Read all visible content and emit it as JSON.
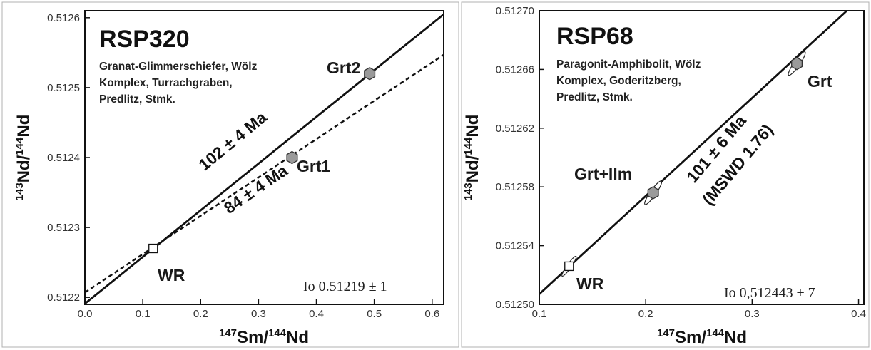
{
  "chart_data": [
    {
      "type": "scatter",
      "title": "RSP320",
      "subtitle_lines": [
        "Granat-Glimmerschiefer, Wölz",
        "Komplex, Turrachgraben,",
        "Predlitz, Stmk."
      ],
      "xlabel_sup1": "147",
      "xlabel_main1": "Sm/",
      "xlabel_sup2": "144",
      "xlabel_main2": "Nd",
      "ylabel_sup1": "143",
      "ylabel_main1": "Nd/",
      "ylabel_sup2": "144",
      "ylabel_main2": "Nd",
      "xlim": [
        0.0,
        0.62
      ],
      "ylim": [
        0.51219,
        0.51261
      ],
      "xticks": [
        0.0,
        0.1,
        0.2,
        0.3,
        0.4,
        0.5,
        0.6
      ],
      "xtick_labels": [
        "0.0",
        "0.1",
        "0.2",
        "0.3",
        "0.4",
        "0.5",
        "0.6"
      ],
      "yticks": [
        0.5122,
        0.5123,
        0.5124,
        0.5125,
        0.5126
      ],
      "ytick_labels": [
        "0.5122",
        "0.5123",
        "0.5124",
        "0.5125",
        "0.5126"
      ],
      "points": [
        {
          "label": "WR",
          "x": 0.118,
          "y": 0.51227,
          "marker": "square"
        },
        {
          "label": "Grt1",
          "x": 0.358,
          "y": 0.5124,
          "marker": "hexagon"
        },
        {
          "label": "Grt2",
          "x": 0.492,
          "y": 0.51252,
          "marker": "hexagon"
        }
      ],
      "isochrons": [
        {
          "label": "102 ± 4 Ma",
          "style": "solid",
          "x": [
            0.0,
            0.62
          ],
          "y": [
            0.512191,
            0.512605
          ]
        },
        {
          "label": "84 ± 4 Ma",
          "style": "dashed",
          "x": [
            0.0,
            0.62
          ],
          "y": [
            0.512207,
            0.512547
          ]
        }
      ],
      "io_label": "Io 0.51219 ± 1",
      "grid": false
    },
    {
      "type": "scatter",
      "title": "RSP68",
      "subtitle_lines": [
        "Paragonit-Amphibolit, Wölz",
        "Komplex, Goderitzberg,",
        "Predlitz, Stmk."
      ],
      "xlabel_sup1": "147",
      "xlabel_main1": "Sm/",
      "xlabel_sup2": "144",
      "xlabel_main2": "Nd",
      "ylabel_sup1": "143",
      "ylabel_main1": "Nd/",
      "ylabel_sup2": "144",
      "ylabel_main2": "Nd",
      "xlim": [
        0.1,
        0.405
      ],
      "ylim": [
        0.5125,
        0.5127
      ],
      "xticks": [
        0.1,
        0.2,
        0.3,
        0.4
      ],
      "xtick_labels": [
        "0.1",
        "0.2",
        "0.3",
        "0.4"
      ],
      "yticks": [
        0.5125,
        0.51254,
        0.51258,
        0.51262,
        0.51266,
        0.5127
      ],
      "ytick_labels": [
        "0.51250",
        "0.51254",
        "0.51258",
        "0.51262",
        "0.51266",
        "0.51270"
      ],
      "points": [
        {
          "label": "WR",
          "x": 0.128,
          "y": 0.512526,
          "marker": "square"
        },
        {
          "label": "Grt+Ilm",
          "x": 0.207,
          "y": 0.512576,
          "marker": "hexagon"
        },
        {
          "label": "Grt",
          "x": 0.342,
          "y": 0.512664,
          "marker": "hexagon"
        }
      ],
      "isochrons": [
        {
          "label": "101 ± 6 Ma",
          "label2": "(MSWD 1.76)",
          "style": "solid",
          "x": [
            0.1,
            0.389
          ],
          "y": [
            0.512507,
            0.5127
          ]
        }
      ],
      "io_label": "Io 0,512443 ± 7",
      "grid": false
    }
  ]
}
